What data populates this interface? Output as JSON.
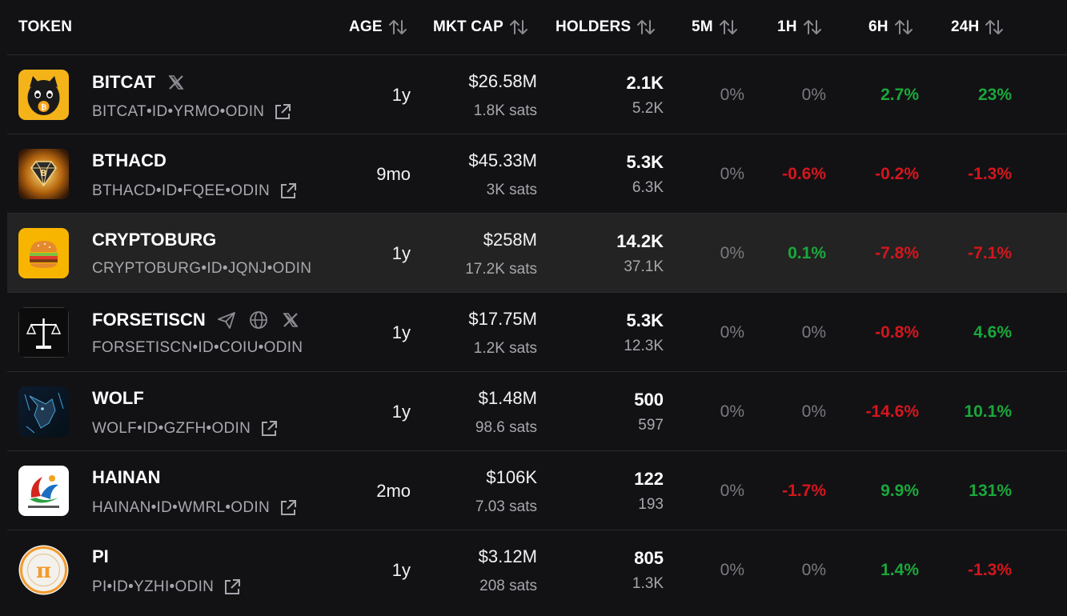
{
  "columns": {
    "token": "TOKEN",
    "age": "AGE",
    "mktcap": "MKT CAP",
    "holders": "HOLDERS",
    "m5": "5M",
    "h1": "1H",
    "h6": "6H",
    "h24": "24H"
  },
  "colors": {
    "positive": "#1aa83a",
    "negative": "#d4161c",
    "neutral": "#7a7a80"
  },
  "tokens": [
    {
      "name": "BITCAT",
      "id": "BITCAT•ID•YRMO•ODIN",
      "social_icons": [
        "x-icon"
      ],
      "age": "1y",
      "mcap": "$26.58M",
      "sats": "1.8K sats",
      "holders": "2.1K",
      "holders2": "5.2K",
      "m5": "0%",
      "h1": "0%",
      "h6": "2.7%",
      "h24": "23%"
    },
    {
      "name": "BTHACD",
      "id": "BTHACD•ID•FQEE•ODIN",
      "social_icons": [],
      "age": "9mo",
      "mcap": "$45.33M",
      "sats": "3K sats",
      "holders": "5.3K",
      "holders2": "6.3K",
      "m5": "0%",
      "h1": "-0.6%",
      "h6": "-0.2%",
      "h24": "-1.3%"
    },
    {
      "name": "CRYPTOBURG",
      "id": "CRYPTOBURG•ID•JQNJ•ODIN",
      "social_icons": [],
      "age": "1y",
      "mcap": "$258M",
      "sats": "17.2K sats",
      "holders": "14.2K",
      "holders2": "37.1K",
      "m5": "0%",
      "h1": "0.1%",
      "h6": "-7.8%",
      "h24": "-7.1%"
    },
    {
      "name": "FORSETISCN",
      "id": "FORSETISCN•ID•COIU•ODIN",
      "social_icons": [
        "telegram-icon",
        "globe-icon",
        "x-icon"
      ],
      "age": "1y",
      "mcap": "$17.75M",
      "sats": "1.2K sats",
      "holders": "5.3K",
      "holders2": "12.3K",
      "m5": "0%",
      "h1": "0%",
      "h6": "-0.8%",
      "h24": "4.6%"
    },
    {
      "name": "WOLF",
      "id": "WOLF•ID•GZFH•ODIN",
      "social_icons": [],
      "age": "1y",
      "mcap": "$1.48M",
      "sats": "98.6 sats",
      "holders": "500",
      "holders2": "597",
      "m5": "0%",
      "h1": "0%",
      "h6": "-14.6%",
      "h24": "10.1%"
    },
    {
      "name": "HAINAN",
      "id": "HAINAN•ID•WMRL•ODIN",
      "social_icons": [],
      "age": "2mo",
      "mcap": "$106K",
      "sats": "7.03 sats",
      "holders": "122",
      "holders2": "193",
      "m5": "0%",
      "h1": "-1.7%",
      "h6": "9.9%",
      "h24": "131%"
    },
    {
      "name": "PI",
      "id": "PI•ID•YZHI•ODIN",
      "social_icons": [],
      "age": "1y",
      "mcap": "$3.12M",
      "sats": "208 sats",
      "holders": "805",
      "holders2": "1.3K",
      "m5": "0%",
      "h1": "0%",
      "h6": "1.4%",
      "h24": "-1.3%"
    }
  ]
}
